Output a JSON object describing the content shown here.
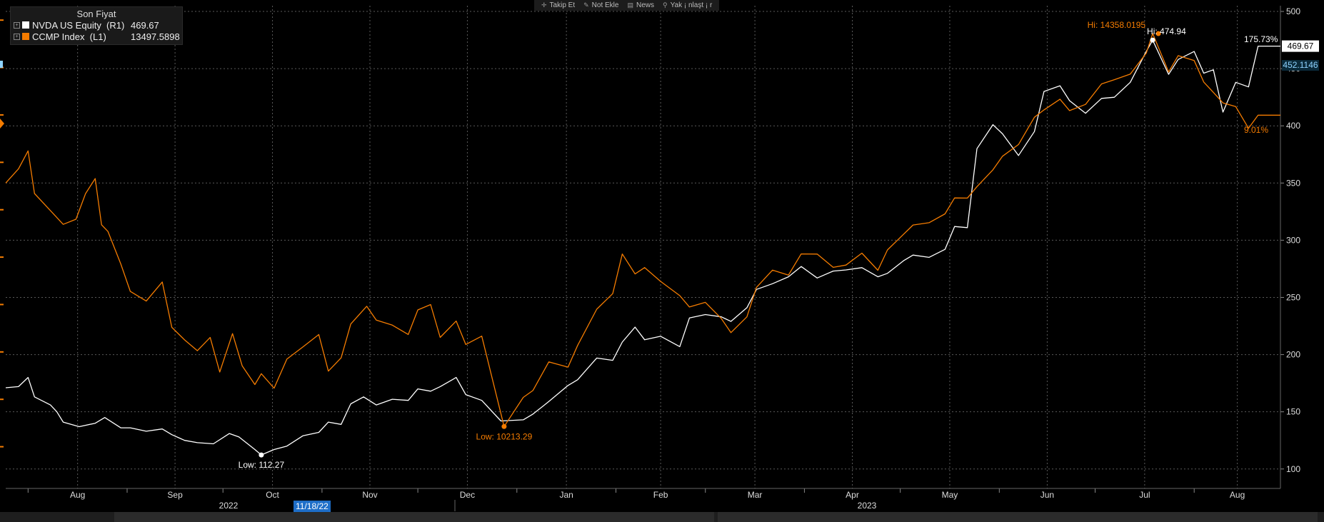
{
  "toolbar": {
    "items": [
      {
        "label": "Takip Et",
        "icon": "plus-icon"
      },
      {
        "label": "Not Ekle",
        "icon": "pencil-icon"
      },
      {
        "label": "News",
        "icon": "news-icon"
      },
      {
        "label": "Yak ¡ nlaşt ¡ r",
        "icon": "zoom-icon"
      }
    ]
  },
  "legend": {
    "header": "Son Fiyat",
    "rows": [
      {
        "name": "NVDA US Equity  (R1)",
        "value": "469.67",
        "color": "#ffffff"
      },
      {
        "name": "CCMP Index  (L1)",
        "value": "13497.5898",
        "color": "#f57c00"
      }
    ]
  },
  "colors": {
    "background": "#000000",
    "grid": "#5a5a5a",
    "nvda": "#ffffff",
    "ccmp": "#f57c00",
    "tag_blue": "#8fd3ff"
  },
  "selected_date": "11/18/22",
  "chart_data": {
    "type": "line",
    "x_range": [
      "2022-07-25",
      "2023-08-28"
    ],
    "x_month_labels": [
      "Aug",
      "Sep",
      "Oct",
      "Nov",
      "Dec",
      "Jan",
      "Feb",
      "Mar",
      "Apr",
      "May",
      "Jun",
      "Jul",
      "Aug"
    ],
    "x_year_labels": [
      "2022",
      "2023"
    ],
    "right_axis": {
      "ticks": [
        100,
        150,
        200,
        250,
        300,
        350,
        400,
        450,
        500
      ],
      "range": [
        83,
        505
      ]
    },
    "grid": true,
    "legend_position": "top-left",
    "series": [
      {
        "name": "NVDA US Equity",
        "axis": "right",
        "color": "#ffffff",
        "points": [
          [
            "2022-07-25",
            171
          ],
          [
            "2022-07-29",
            172
          ],
          [
            "2022-08-01",
            180
          ],
          [
            "2022-08-03",
            163
          ],
          [
            "2022-08-08",
            156
          ],
          [
            "2022-08-10",
            150
          ],
          [
            "2022-08-12",
            141
          ],
          [
            "2022-08-17",
            137
          ],
          [
            "2022-08-22",
            140
          ],
          [
            "2022-08-25",
            145
          ],
          [
            "2022-08-30",
            136
          ],
          [
            "2022-09-02",
            136
          ],
          [
            "2022-09-07",
            133
          ],
          [
            "2022-09-12",
            135
          ],
          [
            "2022-09-15",
            130
          ],
          [
            "2022-09-19",
            125
          ],
          [
            "2022-09-23",
            123
          ],
          [
            "2022-09-28",
            122
          ],
          [
            "2022-10-03",
            131
          ],
          [
            "2022-10-06",
            128
          ],
          [
            "2022-10-11",
            117
          ],
          [
            "2022-10-13",
            112.27
          ],
          [
            "2022-10-17",
            117
          ],
          [
            "2022-10-21",
            120
          ],
          [
            "2022-10-26",
            129
          ],
          [
            "2022-10-31",
            132
          ],
          [
            "2022-11-03",
            141
          ],
          [
            "2022-11-07",
            139
          ],
          [
            "2022-11-10",
            157
          ],
          [
            "2022-11-14",
            163
          ],
          [
            "2022-11-18",
            156
          ],
          [
            "2022-11-23",
            161
          ],
          [
            "2022-11-28",
            160
          ],
          [
            "2022-12-01",
            170
          ],
          [
            "2022-12-05",
            168
          ],
          [
            "2022-12-08",
            172
          ],
          [
            "2022-12-13",
            180
          ],
          [
            "2022-12-16",
            165
          ],
          [
            "2022-12-21",
            160
          ],
          [
            "2022-12-27",
            142
          ],
          [
            "2023-01-03",
            143
          ],
          [
            "2023-01-06",
            148
          ],
          [
            "2023-01-11",
            159
          ],
          [
            "2023-01-17",
            173
          ],
          [
            "2023-01-20",
            178
          ],
          [
            "2023-01-26",
            197
          ],
          [
            "2023-01-31",
            195
          ],
          [
            "2023-02-03",
            211
          ],
          [
            "2023-02-07",
            224
          ],
          [
            "2023-02-10",
            213
          ],
          [
            "2023-02-15",
            216
          ],
          [
            "2023-02-21",
            207
          ],
          [
            "2023-02-24",
            232
          ],
          [
            "2023-03-01",
            235
          ],
          [
            "2023-03-06",
            233
          ],
          [
            "2023-03-09",
            229
          ],
          [
            "2023-03-14",
            241
          ],
          [
            "2023-03-17",
            257
          ],
          [
            "2023-03-22",
            262
          ],
          [
            "2023-03-27",
            268
          ],
          [
            "2023-03-31",
            277
          ],
          [
            "2023-04-05",
            267
          ],
          [
            "2023-04-10",
            273
          ],
          [
            "2023-04-14",
            274
          ],
          [
            "2023-04-19",
            276
          ],
          [
            "2023-04-24",
            268
          ],
          [
            "2023-04-27",
            271
          ],
          [
            "2023-05-02",
            282
          ],
          [
            "2023-05-05",
            287
          ],
          [
            "2023-05-10",
            285
          ],
          [
            "2023-05-15",
            292
          ],
          [
            "2023-05-18",
            312
          ],
          [
            "2023-05-22",
            311
          ],
          [
            "2023-05-25",
            380
          ],
          [
            "2023-05-30",
            401
          ],
          [
            "2023-06-02",
            393
          ],
          [
            "2023-06-07",
            374
          ],
          [
            "2023-06-12",
            395
          ],
          [
            "2023-06-15",
            430
          ],
          [
            "2023-06-20",
            435
          ],
          [
            "2023-06-23",
            422
          ],
          [
            "2023-06-28",
            411
          ],
          [
            "2023-07-03",
            424
          ],
          [
            "2023-07-07",
            425
          ],
          [
            "2023-07-12",
            438
          ],
          [
            "2023-07-17",
            465
          ],
          [
            "2023-07-19",
            474.94
          ],
          [
            "2023-07-24",
            445
          ],
          [
            "2023-07-27",
            458
          ],
          [
            "2023-08-01",
            465
          ],
          [
            "2023-08-04",
            446
          ],
          [
            "2023-08-07",
            449
          ],
          [
            "2023-08-10",
            412
          ],
          [
            "2023-08-14",
            438
          ],
          [
            "2023-08-18",
            434
          ],
          [
            "2023-08-21",
            469.67
          ],
          [
            "2023-08-28",
            469.67
          ]
        ]
      },
      {
        "name": "CCMP Index",
        "axis": "left",
        "color": "#f57c00",
        "points": [
          [
            "2022-07-25",
            12781.42
          ],
          [
            "2022-07-29",
            12931.26
          ],
          [
            "2022-08-01",
            13120.35
          ],
          [
            "2022-08-03",
            12670.76
          ],
          [
            "2022-08-08",
            12490.7
          ],
          [
            "2022-08-12",
            12345.42
          ],
          [
            "2022-08-16",
            12399.43
          ],
          [
            "2022-08-19",
            12670.38
          ],
          [
            "2022-08-22",
            12828.15
          ],
          [
            "2022-08-24",
            12341.11
          ],
          [
            "2022-08-26",
            12270.1
          ],
          [
            "2022-08-30",
            11929.07
          ],
          [
            "2022-09-02",
            11637.96
          ],
          [
            "2022-09-07",
            11536.85
          ],
          [
            "2022-09-12",
            11737.69
          ],
          [
            "2022-09-15",
            11259.42
          ],
          [
            "2022-09-19",
            11126.88
          ],
          [
            "2022-09-23",
            11013.25
          ],
          [
            "2022-09-27",
            11152.56
          ],
          [
            "2022-09-30",
            10788.02
          ],
          [
            "2022-10-04",
            11193.16
          ],
          [
            "2022-10-07",
            10854.28
          ],
          [
            "2022-10-11",
            10655.8
          ],
          [
            "2022-10-13",
            10770.63
          ],
          [
            "2022-10-17",
            10617.91
          ],
          [
            "2022-10-21",
            10923.8
          ],
          [
            "2022-10-26",
            11052.46
          ],
          [
            "2022-10-31",
            11183.36
          ],
          [
            "2022-11-03",
            10797.44
          ],
          [
            "2022-11-07",
            10937.6
          ],
          [
            "2022-11-10",
            11295.08
          ],
          [
            "2022-11-15",
            11481.34
          ],
          [
            "2022-11-18",
            11336.55
          ],
          [
            "2022-11-23",
            11282.39
          ],
          [
            "2022-11-28",
            11184.36
          ],
          [
            "2022-12-01",
            11443.28
          ],
          [
            "2022-12-05",
            11499.65
          ],
          [
            "2022-12-08",
            11153.12
          ],
          [
            "2022-12-13",
            11325.38
          ],
          [
            "2022-12-16",
            11078.24
          ],
          [
            "2022-12-21",
            11166.51
          ],
          [
            "2022-12-28",
            10213.29
          ],
          [
            "2023-01-03",
            10520.47
          ],
          [
            "2023-01-06",
            10592.56
          ],
          [
            "2023-01-11",
            10894.43
          ],
          [
            "2023-01-17",
            10839.89
          ],
          [
            "2023-01-20",
            11067.88
          ],
          [
            "2023-01-26",
            11450.62
          ],
          [
            "2023-01-31",
            11614.56
          ],
          [
            "2023-02-03",
            12033.12
          ],
          [
            "2023-02-07",
            11822.45
          ],
          [
            "2023-02-10",
            11889.68
          ],
          [
            "2023-02-15",
            11743.73
          ],
          [
            "2023-02-21",
            11593.72
          ],
          [
            "2023-02-24",
            11474.17
          ],
          [
            "2023-03-01",
            11523.16
          ],
          [
            "2023-03-06",
            11352.24
          ],
          [
            "2023-03-09",
            11203.71
          ],
          [
            "2023-03-14",
            11370.27
          ],
          [
            "2023-03-17",
            11681.12
          ],
          [
            "2023-03-22",
            11863.02
          ],
          [
            "2023-03-27",
            11810.41
          ],
          [
            "2023-03-31",
            12034.04
          ],
          [
            "2023-04-05",
            12032.38
          ],
          [
            "2023-04-10",
            11891.84
          ],
          [
            "2023-04-14",
            11916.55
          ],
          [
            "2023-04-19",
            12041.89
          ],
          [
            "2023-04-24",
            11861.56
          ],
          [
            "2023-04-27",
            12075.74
          ],
          [
            "2023-05-02",
            12240.11
          ],
          [
            "2023-05-05",
            12338.97
          ],
          [
            "2023-05-10",
            12362.55
          ],
          [
            "2023-05-15",
            12456.2
          ],
          [
            "2023-05-18",
            12624.42
          ],
          [
            "2023-05-22",
            12622.72
          ],
          [
            "2023-05-25",
            12743.16
          ],
          [
            "2023-05-30",
            12920.89
          ],
          [
            "2023-06-02",
            13063.8
          ],
          [
            "2023-06-07",
            13187.56
          ],
          [
            "2023-06-12",
            13475.21
          ],
          [
            "2023-06-15",
            13553.3
          ],
          [
            "2023-06-20",
            13665.84
          ],
          [
            "2023-06-23",
            13545.47
          ],
          [
            "2023-06-28",
            13610.7
          ],
          [
            "2023-07-03",
            13827.45
          ],
          [
            "2023-07-07",
            13871.81
          ],
          [
            "2023-07-12",
            13930.58
          ],
          [
            "2023-07-17",
            14151.86
          ],
          [
            "2023-07-19",
            14358.0195
          ],
          [
            "2023-07-24",
            13952.61
          ],
          [
            "2023-07-27",
            14125.55
          ],
          [
            "2023-08-01",
            14073.32
          ],
          [
            "2023-08-04",
            13847.13
          ],
          [
            "2023-08-07",
            13737.85
          ],
          [
            "2023-08-10",
            13626.78
          ],
          [
            "2023-08-14",
            13587.38
          ],
          [
            "2023-08-18",
            13359.71
          ],
          [
            "2023-08-21",
            13497.5898
          ],
          [
            "2023-08-28",
            13497.5898
          ]
        ]
      }
    ],
    "annotations": {
      "nvda_low": {
        "label": "Low: 112.27",
        "date": "2022-10-13",
        "value": 112.27
      },
      "ccmp_low": {
        "label": "Low: 10213.29",
        "date": "2022-12-28",
        "value": 10213.29
      },
      "ccmp_high": {
        "label": "Hi: 14358.0195",
        "date": "2023-07-19",
        "value": 14358.0195
      },
      "nvda_high": {
        "label": "Hi: 474.94",
        "date": "2023-07-19",
        "value": 474.94
      },
      "nvda_change": "175.73%",
      "ccmp_change": "9.01%",
      "last_price_tag": "469.67",
      "secondary_tag": "452.1146"
    }
  }
}
